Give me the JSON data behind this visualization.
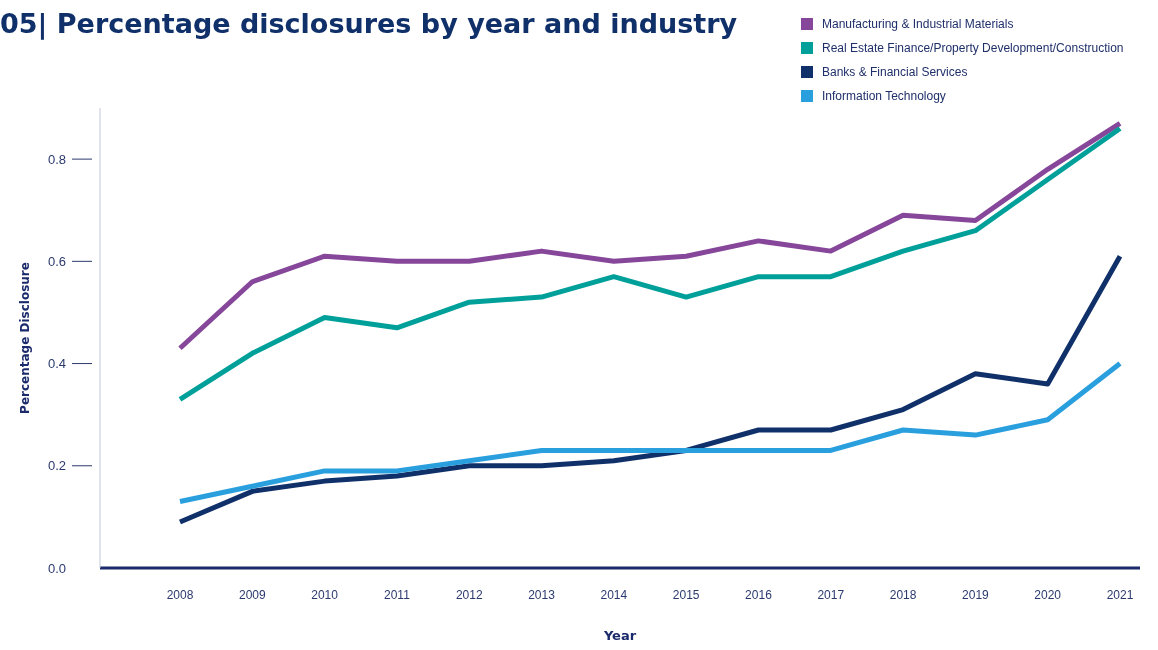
{
  "chart_data": {
    "type": "line",
    "title": "05| Percentage disclosures by year and industry",
    "xlabel": "Year",
    "ylabel": "Percentage Disclosure",
    "categories": [
      "2008",
      "2009",
      "2010",
      "2011",
      "2012",
      "2013",
      "2014",
      "2015",
      "2016",
      "2017",
      "2018",
      "2019",
      "2020",
      "2021"
    ],
    "series": [
      {
        "name": "Manufacturing & Industrial Materials",
        "color": "#86479a",
        "values": [
          0.43,
          0.56,
          0.61,
          0.6,
          0.6,
          0.62,
          0.6,
          0.61,
          0.64,
          0.62,
          0.69,
          0.68,
          0.78,
          0.87
        ]
      },
      {
        "name": "Real Estate Finance/Property Development/Construction",
        "color": "#00a09a",
        "values": [
          0.33,
          0.42,
          0.49,
          0.47,
          0.52,
          0.53,
          0.57,
          0.53,
          0.57,
          0.57,
          0.62,
          0.66,
          0.76,
          0.86
        ]
      },
      {
        "name": "Banks & Financial Services",
        "color": "#10306a",
        "values": [
          0.09,
          0.15,
          0.17,
          0.18,
          0.2,
          0.2,
          0.21,
          0.23,
          0.27,
          0.27,
          0.31,
          0.38,
          0.36,
          0.61
        ]
      },
      {
        "name": "Information Technology",
        "color": "#2a9fde",
        "values": [
          0.13,
          0.16,
          0.19,
          0.19,
          0.21,
          0.23,
          0.23,
          0.23,
          0.23,
          0.23,
          0.27,
          0.26,
          0.29,
          0.4
        ]
      }
    ],
    "ylim": [
      0,
      0.9
    ],
    "yticks": [
      {
        "value": 0,
        "label": "0.0"
      },
      {
        "value": 0.2,
        "label": "0.2"
      },
      {
        "value": 0.4,
        "label": "0.4"
      },
      {
        "value": 0.6,
        "label": "0.6"
      },
      {
        "value": 0.8,
        "label": "0.8"
      }
    ],
    "grid": false,
    "legend": "top right",
    "marker": "none",
    "line_style": "solid"
  }
}
